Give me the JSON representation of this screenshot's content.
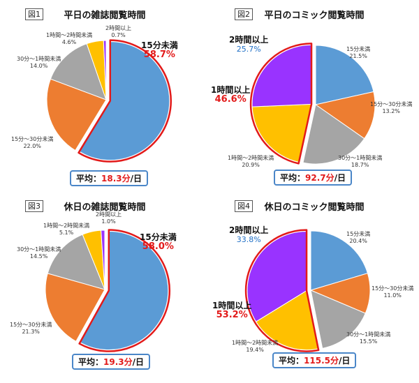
{
  "colors": {
    "under15": "#5b9bd5",
    "m15to30": "#ed7d31",
    "m30to60": "#a5a5a5",
    "h1to2": "#ffc000",
    "over2": "#9933ff",
    "highlight": "#e21a1a",
    "avg_border": "#4a86c8",
    "blue_pct": "#1f6fc6"
  },
  "avg_prefix": "平均：",
  "avg_suffix": "/日",
  "chart_data": [
    {
      "type": "pie",
      "fig": "図1",
      "title": "平日の雑誌閲覧時間",
      "average": "18.3分",
      "slices": [
        {
          "label": "15分未満",
          "value": 58.7,
          "value_text": "58.7%"
        },
        {
          "label": "15分～30分未満",
          "value": 22.0,
          "value_text": "22.0%"
        },
        {
          "label": "30分～1時間未満",
          "value": 14.0,
          "value_text": "14.0%"
        },
        {
          "label": "1時間～2時間未満",
          "value": 4.6,
          "value_text": "4.6%"
        },
        {
          "label": "2時間以上",
          "value": 0.7,
          "value_text": "0.7%"
        }
      ]
    },
    {
      "type": "pie",
      "fig": "図2",
      "title": "平日のコミック閲覧時間",
      "average": "92.7分",
      "slices": [
        {
          "label": "15分未満",
          "value": 21.5,
          "value_text": "21.5%"
        },
        {
          "label": "15分～30分未満",
          "value": 13.2,
          "value_text": "13.2%"
        },
        {
          "label": "30分～1時間未満",
          "value": 18.7,
          "value_text": "18.7%"
        },
        {
          "label": "1時間～2時間未満",
          "value": 20.9,
          "value_text": "20.9%"
        },
        {
          "label": "2時間以上",
          "value": 25.7,
          "value_text": "25.7%"
        }
      ],
      "callout": {
        "label": "1時間以上",
        "value_text": "46.6%"
      }
    },
    {
      "type": "pie",
      "fig": "図3",
      "title": "休日の雑誌閲覧時間",
      "average": "19.3分",
      "slices": [
        {
          "label": "15分未満",
          "value": 58.0,
          "value_text": "58.0%"
        },
        {
          "label": "15分～30分未満",
          "value": 21.3,
          "value_text": "21.3%"
        },
        {
          "label": "30分～1時間未満",
          "value": 14.5,
          "value_text": "14.5%"
        },
        {
          "label": "1時間～2時間未満",
          "value": 5.1,
          "value_text": "5.1%"
        },
        {
          "label": "2時間以上",
          "value": 1.0,
          "value_text": "1.0%"
        }
      ]
    },
    {
      "type": "pie",
      "fig": "図4",
      "title": "休日のコミック閲覧時間",
      "average": "115.5分",
      "slices": [
        {
          "label": "15分未満",
          "value": 20.4,
          "value_text": "20.4%"
        },
        {
          "label": "15分～30分未満",
          "value": 11.0,
          "value_text": "11.0%"
        },
        {
          "label": "30分～1時間未満",
          "value": 15.5,
          "value_text": "15.5%"
        },
        {
          "label": "1時間～2時間未満",
          "value": 19.4,
          "value_text": "19.4%"
        },
        {
          "label": "2時間以上",
          "value": 33.8,
          "value_text": "33.8%"
        }
      ],
      "callout": {
        "label": "1時間以上",
        "value_text": "53.2%"
      }
    }
  ]
}
